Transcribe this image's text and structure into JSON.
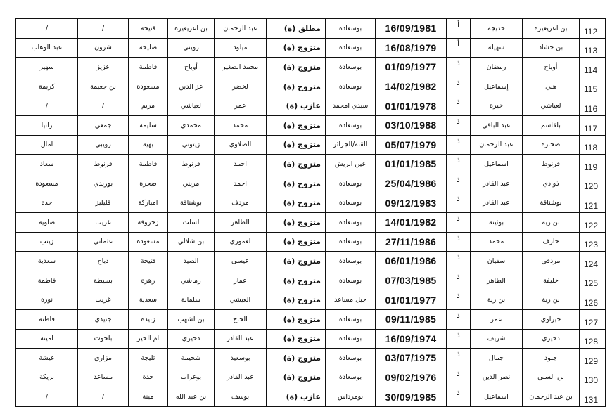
{
  "rows": [
    {
      "c1": "/",
      "c2": "/",
      "c3": "قتيحة",
      "c4": "بن اعريعيرة",
      "c5": "عبد الرحمان",
      "marital": "مطلق (ة)",
      "place": "بوسعادة",
      "date": "16/09/1981",
      "gender": "أ",
      "first": "خديجة",
      "last": "بن اعريعيرة",
      "num": "112"
    },
    {
      "c1": "عبد الوهاب",
      "c2": "شرون",
      "c3": "صليحة",
      "c4": "رويني",
      "c5": "ميلود",
      "marital": "متزوج (ة)",
      "place": "بوسعادة",
      "date": "16/08/1979",
      "gender": "أ",
      "first": "سهيلة",
      "last": "بن حشاد",
      "num": "113"
    },
    {
      "c1": "سهير",
      "c2": "عزيز",
      "c3": "فاطمة",
      "c4": "أوباح",
      "c5": "محمد الصغير",
      "marital": "متزوج (ة)",
      "place": "بوسعادة",
      "date": "01/09/1977",
      "gender": "ذ",
      "first": "رمضان",
      "last": "أوباح",
      "num": "114"
    },
    {
      "c1": "كريمة",
      "c2": "بن جعيمة",
      "c3": "مسعودة",
      "c4": "عز الدين",
      "c5": "لخضر",
      "marital": "متزوج (ة)",
      "place": "بوسعادة",
      "date": "14/02/1982",
      "gender": "ذ",
      "first": "إسماعيل",
      "last": "هني",
      "num": "115"
    },
    {
      "c1": "/",
      "c2": "/",
      "c3": "مريم",
      "c4": "لعياشي",
      "c5": "عمر",
      "marital": "عازب (ة)",
      "place": "سيدي امحمد",
      "date": "01/01/1978",
      "gender": "ذ",
      "first": "خيرة",
      "last": "لعياشي",
      "num": "116"
    },
    {
      "c1": "رانيا",
      "c2": "جمعي",
      "c3": "سليمة",
      "c4": "محمدي",
      "c5": "محمد",
      "marital": "متزوج (ة)",
      "place": "بوسعادة",
      "date": "03/10/1988",
      "gender": "ذ",
      "first": "عبد الباقي",
      "last": "بلقاسم",
      "num": "117"
    },
    {
      "c1": "امال",
      "c2": "رويبي",
      "c3": "بهية",
      "c4": "زيتوني",
      "c5": "الصلاوي",
      "marital": "متزوج (ة)",
      "place": "القبة/الجزائر",
      "date": "05/07/1979",
      "gender": "ذ",
      "first": "عبد الرحمان",
      "last": "صخارة",
      "num": "118"
    },
    {
      "c1": "سعاد",
      "c2": "قرنوط",
      "c3": "فاطمة",
      "c4": "قرنوط",
      "c5": "احمد",
      "marital": "متزوج (ة)",
      "place": "عين الريش",
      "date": "01/01/1985",
      "gender": "ذ",
      "first": "اسماعيل",
      "last": "قرنوط",
      "num": "119"
    },
    {
      "c1": "مسعودة",
      "c2": "بوزيدي",
      "c3": "صحرة",
      "c4": "مريني",
      "c5": "احمد",
      "marital": "متزوج (ة)",
      "place": "بوسعادة",
      "date": "25/04/1986",
      "gender": "ذ",
      "first": "عبد القادر",
      "last": "ذوادي",
      "num": "120"
    },
    {
      "c1": "حدة",
      "c2": "قليليز",
      "c3": "امباركة",
      "c4": "بوشناقة",
      "c5": "مردف",
      "marital": "متزوج (ة)",
      "place": "بوسعادة",
      "date": "09/12/1983",
      "gender": "ذ",
      "first": "عبد القادر",
      "last": "بوشناقة",
      "num": "121"
    },
    {
      "c1": "ضاوية",
      "c2": "غريب",
      "c3": "زخروفة",
      "c4": "لسلت",
      "c5": "الطاهر",
      "marital": "متزوج (ة)",
      "place": "بوسعادة",
      "date": "14/01/1982",
      "gender": "ذ",
      "first": "بوثينة",
      "last": "بن رية",
      "num": "122"
    },
    {
      "c1": "زينب",
      "c2": "عثماني",
      "c3": "مسعودة",
      "c4": "بن شلالي",
      "c5": "لعموري",
      "marital": "متزوج (ة)",
      "place": "بوسعادة",
      "date": "27/11/1986",
      "gender": "ذ",
      "first": "محمد",
      "last": "خارف",
      "num": "123"
    },
    {
      "c1": "سعدية",
      "c2": "ذباح",
      "c3": "قتيحة",
      "c4": "الصيد",
      "c5": "عيسى",
      "marital": "متزوج (ة)",
      "place": "بوسعادة",
      "date": "06/01/1986",
      "gender": "ذ",
      "first": "سفيان",
      "last": "مردفي",
      "num": "124"
    },
    {
      "c1": "فاطمة",
      "c2": "بسيطة",
      "c3": "زهرة",
      "c4": "رماشي",
      "c5": "عمار",
      "marital": "متزوج (ة)",
      "place": "بوسعادة",
      "date": "07/03/1985",
      "gender": "ذ",
      "first": "الطاهر",
      "last": "خليفة",
      "num": "125"
    },
    {
      "c1": "نورة",
      "c2": "غريب",
      "c3": "سعدية",
      "c4": "سلمانة",
      "c5": "العيشي",
      "marital": "متزوج (ة)",
      "place": "جبل مساعد",
      "date": "01/01/1977",
      "gender": "ذ",
      "first": "بن رية",
      "last": "بن رية",
      "num": "126"
    },
    {
      "c1": "فاطنة",
      "c2": "جنيدي",
      "c3": "زبيدة",
      "c4": "بن لشهب",
      "c5": "الحاج",
      "marital": "متزوج (ة)",
      "place": "بوسعادة",
      "date": "09/11/1985",
      "gender": "ذ",
      "first": "عمر",
      "last": "خيراوي",
      "num": "127"
    },
    {
      "c1": "امينة",
      "c2": "بلحوت",
      "c3": "ام الخير",
      "c4": "دحيري",
      "c5": "عبد القادر",
      "marital": "متزوج (ة)",
      "place": "بوسعادة",
      "date": "16/09/1974",
      "gender": "ذ",
      "first": "شريف",
      "last": "دحيري",
      "num": "128"
    },
    {
      "c1": "عيشة",
      "c2": "مزاري",
      "c3": "ثليجة",
      "c4": "شحيمة",
      "c5": "بوسعيد",
      "marital": "متزوج (ة)",
      "place": "بوسعادة",
      "date": "03/07/1975",
      "gender": "ذ",
      "first": "جمال",
      "last": "جلود",
      "num": "129"
    },
    {
      "c1": "بريكة",
      "c2": "مساعد",
      "c3": "حدة",
      "c4": "بوغراب",
      "c5": "عبد القادر",
      "marital": "متزوج (ة)",
      "place": "بوسعادة",
      "date": "09/02/1976",
      "gender": "ذ",
      "first": "نصر الدين",
      "last": "بن السني",
      "num": "130"
    },
    {
      "c1": "/",
      "c2": "/",
      "c3": "مينة",
      "c4": "بن عبد الله",
      "c5": "يوسف",
      "marital": "عازب (ة)",
      "place": "بومرداس",
      "date": "30/09/1985",
      "gender": "ذ",
      "first": "اسماعيل",
      "last": "بن عبد الرحمان",
      "num": "131"
    }
  ]
}
